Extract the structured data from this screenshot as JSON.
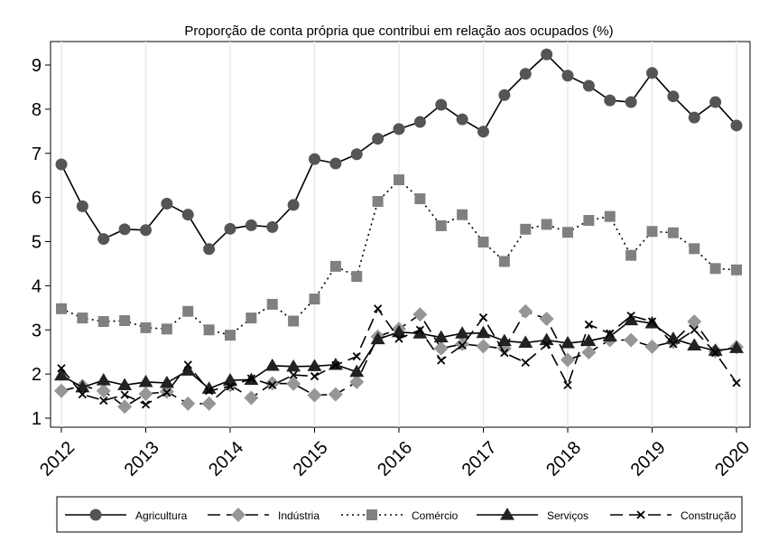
{
  "chart_data": {
    "type": "line",
    "title": "Proporção de conta própria que contribui em relação aos ocupados (%)",
    "xlabel": "",
    "ylabel": "",
    "x_ticks": [
      "2012",
      "2013",
      "2014",
      "2015",
      "2016",
      "2017",
      "2018",
      "2019",
      "2020"
    ],
    "y_ticks": [
      "1",
      "2",
      "3",
      "4",
      "5",
      "6",
      "7",
      "8",
      "9"
    ],
    "xlim": [
      2012.0,
      2020.0
    ],
    "ylim": [
      0.8,
      9.5
    ],
    "grid": "vertical at year ticks",
    "legend_position": "bottom",
    "x": [
      2012.0,
      2012.25,
      2012.5,
      2012.75,
      2013.0,
      2013.25,
      2013.5,
      2013.75,
      2014.0,
      2014.25,
      2014.5,
      2014.75,
      2015.0,
      2015.25,
      2015.5,
      2015.75,
      2016.0,
      2016.25,
      2016.5,
      2016.75,
      2017.0,
      2017.25,
      2017.5,
      2017.75,
      2018.0,
      2018.25,
      2018.5,
      2018.75,
      2019.0,
      2019.25,
      2019.5,
      2019.75,
      2020.0
    ],
    "series": [
      {
        "name": "Agricultura",
        "color": "#000000",
        "dash": "solid",
        "marker": "circle",
        "marker_color": "#555555",
        "values": [
          6.75,
          5.8,
          5.06,
          5.28,
          5.26,
          5.86,
          5.61,
          4.83,
          5.29,
          5.37,
          5.33,
          5.83,
          6.87,
          6.77,
          6.98,
          7.33,
          7.55,
          7.71,
          8.1,
          7.77,
          7.49,
          8.32,
          8.8,
          9.24,
          8.76,
          8.53,
          8.2,
          8.16,
          8.82,
          8.29,
          7.81,
          8.16,
          7.63
        ]
      },
      {
        "name": "Indústria",
        "color": "#000000",
        "dash": "long-dash",
        "marker": "diamond",
        "marker_color": "#969696",
        "values": [
          1.62,
          1.73,
          1.62,
          1.26,
          1.55,
          1.6,
          1.33,
          1.33,
          1.75,
          1.46,
          1.79,
          1.78,
          1.52,
          1.54,
          1.82,
          2.85,
          3.02,
          3.35,
          2.58,
          2.68,
          2.63,
          2.58,
          3.42,
          3.25,
          2.32,
          2.49,
          2.77,
          2.77,
          2.62,
          2.73,
          3.19,
          2.52,
          2.61
        ]
      },
      {
        "name": "Comércio",
        "color": "#000000",
        "dash": "dot",
        "marker": "square",
        "marker_color": "#808080",
        "values": [
          3.48,
          3.27,
          3.19,
          3.21,
          3.05,
          3.02,
          3.42,
          3.0,
          2.88,
          3.27,
          3.58,
          3.2,
          3.7,
          4.44,
          4.21,
          5.91,
          6.4,
          5.97,
          5.36,
          5.61,
          4.99,
          4.55,
          5.28,
          5.39,
          5.21,
          5.48,
          5.57,
          4.69,
          5.23,
          5.2,
          4.84,
          4.39,
          4.36
        ]
      },
      {
        "name": "Serviços",
        "color": "#000000",
        "dash": "solid",
        "marker": "triangle",
        "marker_color": "#222222",
        "values": [
          1.97,
          1.7,
          1.86,
          1.75,
          1.82,
          1.8,
          2.08,
          1.67,
          1.86,
          1.87,
          2.19,
          2.17,
          2.18,
          2.21,
          2.05,
          2.79,
          2.95,
          2.92,
          2.83,
          2.92,
          2.93,
          2.75,
          2.71,
          2.77,
          2.7,
          2.75,
          2.85,
          3.22,
          3.15,
          2.8,
          2.65,
          2.53,
          2.59
        ]
      },
      {
        "name": "Construção",
        "color": "#000000",
        "dash": "long-dash",
        "marker": "x",
        "marker_color": "#000000",
        "values": [
          2.13,
          1.54,
          1.4,
          1.53,
          1.31,
          1.58,
          2.21,
          1.62,
          1.72,
          1.9,
          1.75,
          1.98,
          1.95,
          2.2,
          2.4,
          3.48,
          2.8,
          3.0,
          2.31,
          2.65,
          3.28,
          2.48,
          2.26,
          2.67,
          1.75,
          3.12,
          2.92,
          3.32,
          3.19,
          2.68,
          3.0,
          2.48,
          1.8
        ]
      }
    ]
  }
}
